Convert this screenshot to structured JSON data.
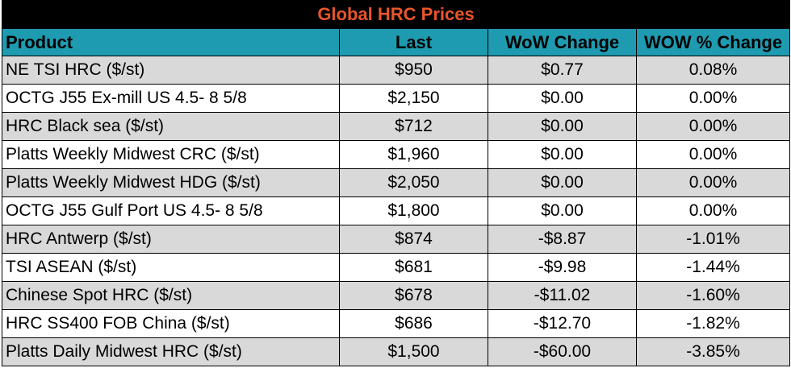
{
  "title": "Global HRC Prices",
  "headers": [
    "Product",
    "Last",
    "WoW Change",
    "WOW % Change"
  ],
  "rows": [
    {
      "product": "NE TSI HRC ($/st)",
      "last": "$950",
      "wow_change": "$0.77",
      "wow_pct": "0.08%"
    },
    {
      "product": "OCTG J55 Ex-mill US 4.5- 8 5/8",
      "last": "$2,150",
      "wow_change": "$0.00",
      "wow_pct": "0.00%"
    },
    {
      "product": "HRC Black sea ($/st)",
      "last": "$712",
      "wow_change": "$0.00",
      "wow_pct": "0.00%"
    },
    {
      "product": "Platts Weekly Midwest CRC ($/st)",
      "last": "$1,960",
      "wow_change": "$0.00",
      "wow_pct": "0.00%"
    },
    {
      "product": "Platts Weekly Midwest HDG ($/st)",
      "last": "$2,050",
      "wow_change": "$0.00",
      "wow_pct": "0.00%"
    },
    {
      "product": "OCTG J55 Gulf Port US 4.5- 8 5/8",
      "last": "$1,800",
      "wow_change": "$0.00",
      "wow_pct": "0.00%"
    },
    {
      "product": "HRC Antwerp ($/st)",
      "last": "$874",
      "wow_change": "-$8.87",
      "wow_pct": "-1.01%"
    },
    {
      "product": "TSI ASEAN ($/st)",
      "last": "$681",
      "wow_change": "-$9.98",
      "wow_pct": "-1.44%"
    },
    {
      "product": "Chinese Spot HRC ($/st)",
      "last": "$678",
      "wow_change": "-$11.02",
      "wow_pct": "-1.60%"
    },
    {
      "product": "HRC SS400 FOB China ($/st)",
      "last": "$686",
      "wow_change": "-$12.70",
      "wow_pct": "-1.82%"
    },
    {
      "product": "Platts Daily Midwest HRC ($/st)",
      "last": "$1,500",
      "wow_change": "-$60.00",
      "wow_pct": "-3.85%"
    }
  ],
  "colors": {
    "title_bg": "#000000",
    "title_text": "#e8552b",
    "header_bg": "#1e9bb0",
    "row_shade": "#d9d9d9",
    "row_plain": "#ffffff"
  }
}
